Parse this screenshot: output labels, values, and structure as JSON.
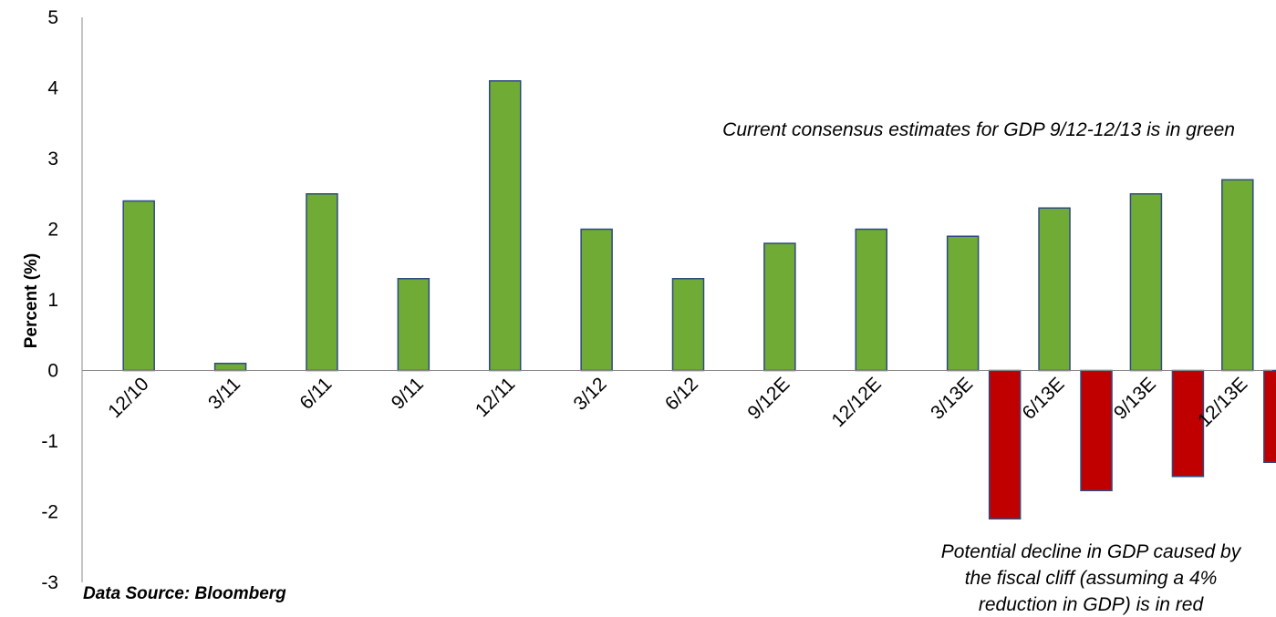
{
  "chart_data": {
    "type": "bar",
    "categories": [
      "12/10",
      "3/11",
      "6/11",
      "9/11",
      "12/11",
      "3/12",
      "6/12",
      "9/12E",
      "12/12E",
      "3/13E",
      "6/13E",
      "9/13E",
      "12/13E"
    ],
    "series": [
      {
        "values": [
          2.4,
          0.1,
          2.5,
          1.3,
          4.1,
          2.0,
          1.3,
          1.8,
          2.0,
          1.9,
          2.3,
          2.5,
          2.7
        ],
        "color": "#6fab35"
      },
      {
        "values": [
          null,
          null,
          null,
          null,
          null,
          null,
          null,
          null,
          null,
          -2.1,
          -1.7,
          -1.5,
          -1.3
        ],
        "color": "#c00000"
      }
    ],
    "ylabel": "Percent (%)",
    "ylim": [
      -3,
      5
    ],
    "yticks": [
      "-3",
      "-2",
      "-1",
      "0",
      "1",
      "2",
      "3",
      "4",
      "5"
    ],
    "grid": false,
    "annotations": {
      "green_note": "Current consensus estimates for GDP 9/12-12/13 is in green",
      "red_note_lines": [
        "Potential decline in GDP caused by",
        "the fiscal cliff (assuming a 4%",
        "reduction in GDP) is in red"
      ],
      "source": "Data Source: Bloomberg"
    },
    "bar_edge_color": "#2f4a80"
  }
}
